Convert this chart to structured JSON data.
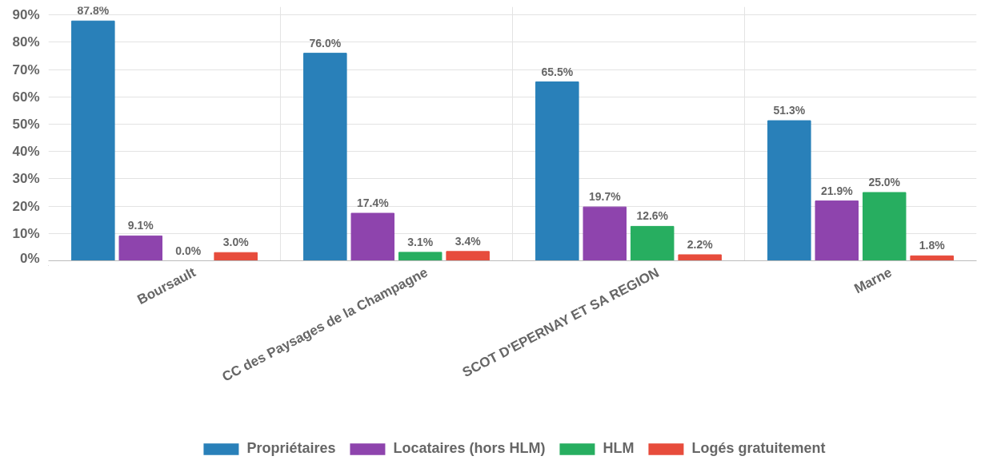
{
  "chart_data": {
    "type": "bar",
    "categories": [
      "Boursault",
      "CC des Paysages de la Champagne",
      "SCOT D'EPERNAY ET SA REGION",
      "Marne"
    ],
    "series": [
      {
        "name": "Propriétaires",
        "color": "#2980b9",
        "values": [
          87.8,
          76.0,
          65.5,
          51.3
        ],
        "value_labels": [
          "87.8%",
          "76.0%",
          "65.5%",
          "51.3%"
        ]
      },
      {
        "name": "Locataires (hors HLM)",
        "color": "#8e44ad",
        "values": [
          9.1,
          17.4,
          19.7,
          21.9
        ],
        "value_labels": [
          "9.1%",
          "17.4%",
          "19.7%",
          "21.9%"
        ]
      },
      {
        "name": "HLM",
        "color": "#27ae60",
        "values": [
          0.0,
          3.1,
          12.6,
          25.0
        ],
        "value_labels": [
          "0.0%",
          "3.1%",
          "12.6%",
          "25.0%"
        ]
      },
      {
        "name": "Logés gratuitement",
        "color": "#e74c3c",
        "values": [
          3.0,
          3.4,
          2.2,
          1.8
        ],
        "value_labels": [
          "3.0%",
          "3.4%",
          "2.2%",
          "1.8%"
        ]
      }
    ],
    "ylim": [
      0,
      93
    ],
    "yticks": [
      {
        "value": 0,
        "label": "0%"
      },
      {
        "value": 10,
        "label": "10%"
      },
      {
        "value": 20,
        "label": "20%"
      },
      {
        "value": 30,
        "label": "30%"
      },
      {
        "value": 40,
        "label": "40%"
      },
      {
        "value": 50,
        "label": "50%"
      },
      {
        "value": 60,
        "label": "60%"
      },
      {
        "value": 70,
        "label": "70%"
      },
      {
        "value": 80,
        "label": "80%"
      },
      {
        "value": 90,
        "label": "90%"
      }
    ],
    "grid": true,
    "legend": "bottom"
  }
}
